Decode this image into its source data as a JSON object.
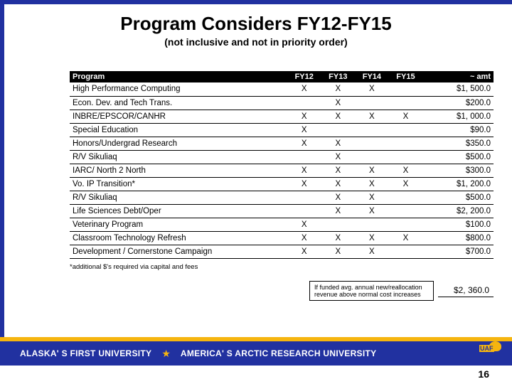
{
  "title": "Program Considers FY12-FY15",
  "subtitle": "(not inclusive and not in priority order)",
  "table": {
    "headers": {
      "program": "Program",
      "fy12": "FY12",
      "fy13": "FY13",
      "fy14": "FY14",
      "fy15": "FY15",
      "amt": "~ amt"
    },
    "rows": [
      {
        "program": "High Performance Computing",
        "fy12": "X",
        "fy13": "X",
        "fy14": "X",
        "fy15": "",
        "amt": "$1, 500.0"
      },
      {
        "program": "Econ. Dev. and Tech Trans.",
        "fy12": "",
        "fy13": "X",
        "fy14": "",
        "fy15": "",
        "amt": "$200.0"
      },
      {
        "program": "INBRE/EPSCOR/CANHR",
        "fy12": "X",
        "fy13": "X",
        "fy14": "X",
        "fy15": "X",
        "amt": "$1, 000.0"
      },
      {
        "program": "Special Education",
        "fy12": "X",
        "fy13": "",
        "fy14": "",
        "fy15": "",
        "amt": "$90.0"
      },
      {
        "program": "Honors/Undergrad Research",
        "fy12": "X",
        "fy13": "X",
        "fy14": "",
        "fy15": "",
        "amt": "$350.0"
      },
      {
        "program": "R/V Sikuliaq",
        "fy12": "",
        "fy13": "X",
        "fy14": "",
        "fy15": "",
        "amt": "$500.0"
      },
      {
        "program": "IARC/ North 2 North",
        "fy12": "X",
        "fy13": "X",
        "fy14": "X",
        "fy15": "X",
        "amt": "$300.0"
      },
      {
        "program": "Vo. IP Transition*",
        "fy12": "X",
        "fy13": "X",
        "fy14": "X",
        "fy15": "X",
        "amt": "$1, 200.0"
      },
      {
        "program": "R/V Sikuliaq",
        "fy12": "",
        "fy13": "X",
        "fy14": "X",
        "fy15": "",
        "amt": "$500.0"
      },
      {
        "program": "Life Sciences Debt/Oper",
        "fy12": "",
        "fy13": "X",
        "fy14": "X",
        "fy15": "",
        "amt": "$2, 200.0"
      },
      {
        "program": "Veterinary Program",
        "fy12": "X",
        "fy13": "",
        "fy14": "",
        "fy15": "",
        "amt": "$100.0"
      },
      {
        "program": "Classroom Technology Refresh",
        "fy12": "X",
        "fy13": "X",
        "fy14": "X",
        "fy15": "X",
        "amt": "$800.0"
      },
      {
        "program": "Development / Cornerstone Campaign",
        "fy12": "X",
        "fy13": "X",
        "fy14": "X",
        "fy15": "",
        "amt": "$700.0"
      }
    ]
  },
  "footnote": "*additional $'s required via capital and fees",
  "avg": {
    "label": "If funded avg. annual new/reallocation revenue above normal cost increases",
    "value": "$2, 360.0"
  },
  "footer": {
    "left": "ALASKA' S FIRST UNIVERSITY",
    "right": "AMERICA' S ARCTIC RESEARCH UNIVERSITY"
  },
  "page_number": "16",
  "colors": {
    "blue": "#2131a0",
    "gold": "#f6b50f"
  }
}
